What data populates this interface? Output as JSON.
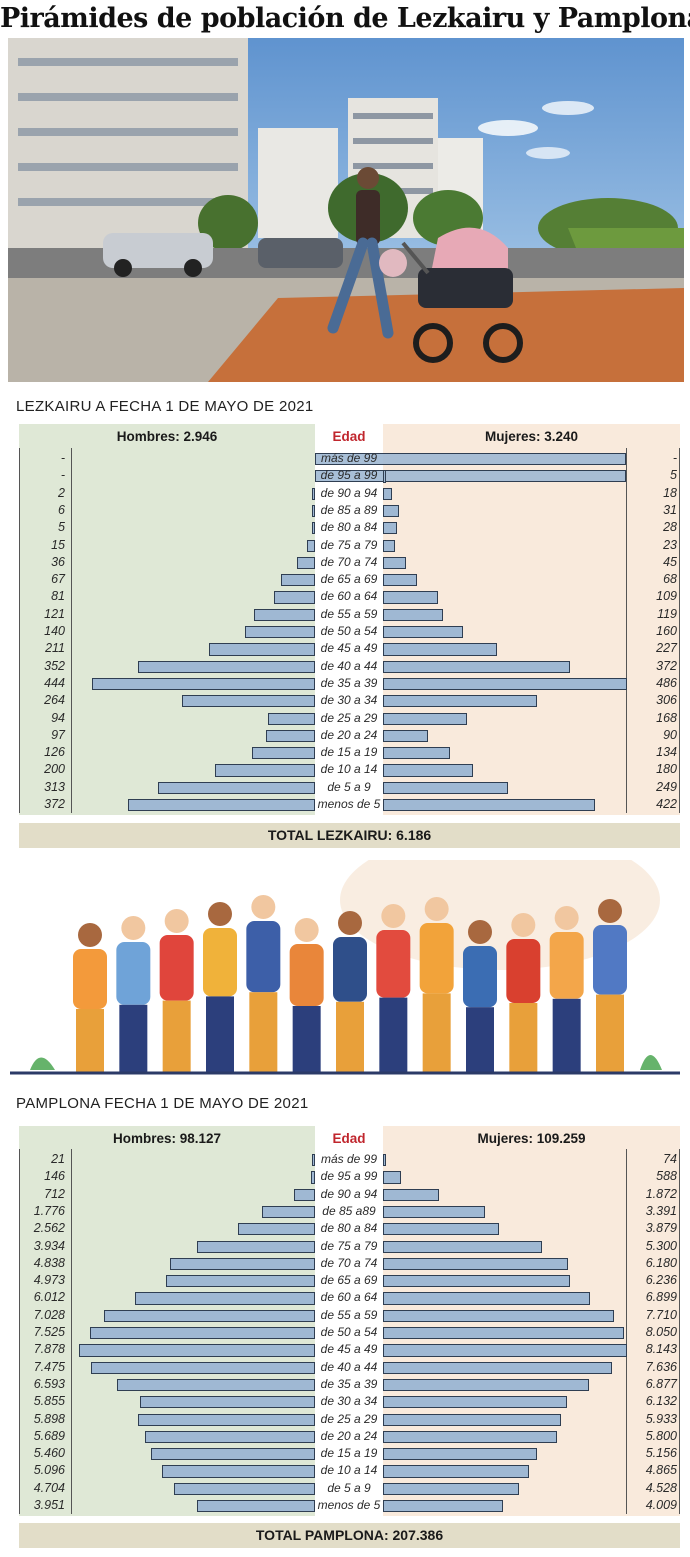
{
  "title": "Pirámides de población de Lezkairu y Pamplona",
  "colors": {
    "men_bg": "#dfe8d6",
    "women_bg": "#f9eadc",
    "bar_fill": "#9fb8d3",
    "bar_stroke": "#2f3e52",
    "age_header": "#c0262d",
    "total_bg": "#e2ddc8"
  },
  "chart_data": [
    {
      "type": "bar",
      "orientation": "horizontal-pyramid",
      "title": "LEZKAIRU A FECHA 1 DE MAYO DE 2021",
      "center_header": "Edad",
      "categories": [
        "más de 99",
        "de 95 a 99",
        "de 90 a 94",
        "de 85 a 89",
        "de 80 a 84",
        "de 75 a 79",
        "de 70 a 74",
        "de 65 a 69",
        "de 60 a 64",
        "de 55 a 59",
        "de 50 a 54",
        "de 45 a 49",
        "de 40 a 44",
        "de 35 a 39",
        "de 30 a 34",
        "de 25 a 29",
        "de 20 a 24",
        "de 15 a 19",
        "de 10 a 14",
        "de 5 a 9",
        "menos de 5"
      ],
      "series": [
        {
          "name": "Hombres: 2.946",
          "values": [
            0,
            0,
            2,
            6,
            5,
            15,
            36,
            67,
            81,
            121,
            140,
            211,
            352,
            444,
            264,
            94,
            97,
            126,
            200,
            313,
            372
          ],
          "labels": [
            "-",
            "-",
            "2",
            "6",
            "5",
            "15",
            "36",
            "67",
            "81",
            "121",
            "140",
            "211",
            "352",
            "444",
            "264",
            "94",
            "97",
            "126",
            "200",
            "313",
            "372"
          ]
        },
        {
          "name": "Mujeres: 3.240",
          "values": [
            0,
            5,
            18,
            31,
            28,
            23,
            45,
            68,
            109,
            119,
            160,
            227,
            372,
            486,
            306,
            168,
            90,
            134,
            180,
            249,
            422
          ],
          "labels": [
            "-",
            "5",
            "18",
            "31",
            "28",
            "23",
            "45",
            "68",
            "109",
            "119",
            "160",
            "227",
            "372",
            "486",
            "306",
            "168",
            "90",
            "134",
            "180",
            "249",
            "422"
          ]
        }
      ],
      "total": "TOTAL LEZKAIRU: 6.186"
    },
    {
      "type": "bar",
      "orientation": "horizontal-pyramid",
      "title": "PAMPLONA FECHA 1 DE MAYO DE 2021",
      "center_header": "Edad",
      "categories": [
        "más de 99",
        "de 95 a 99",
        "de 90 a 94",
        "de 85 a89",
        "de 80 a 84",
        "de 75 a 79",
        "de 70 a 74",
        "de 65 a 69",
        "de 60 a 64",
        "de 55 a 59",
        "de 50 a 54",
        "de 45 a 49",
        "de 40 a 44",
        "de 35 a 39",
        "de 30 a 34",
        "de 25 a 29",
        "de 20 a 24",
        "de 15 a 19",
        "de 10 a 14",
        "de 5 a 9",
        "menos de 5"
      ],
      "series": [
        {
          "name": "Hombres: 98.127",
          "values": [
            21,
            146,
            712,
            1776,
            2562,
            3934,
            4838,
            4973,
            6012,
            7028,
            7525,
            7878,
            7475,
            6593,
            5855,
            5898,
            5689,
            5460,
            5096,
            4704,
            3951
          ],
          "labels": [
            "21",
            "146",
            "712",
            "1.776",
            "2.562",
            "3.934",
            "4.838",
            "4.973",
            "6.012",
            "7.028",
            "7.525",
            "7.878",
            "7.475",
            "6.593",
            "5.855",
            "5.898",
            "5.689",
            "5.460",
            "5.096",
            "4.704",
            "3.951"
          ]
        },
        {
          "name": "Mujeres: 109.259",
          "values": [
            74,
            588,
            1872,
            3391,
            3879,
            5300,
            6180,
            6236,
            6899,
            7710,
            8050,
            8143,
            7636,
            6877,
            6132,
            5933,
            5800,
            5156,
            4865,
            4528,
            4009
          ],
          "labels": [
            "74",
            "588",
            "1.872",
            "3.391",
            "3.879",
            "5.300",
            "6.180",
            "6.236",
            "6.899",
            "7.710",
            "8.050",
            "8.143",
            "7.636",
            "6.877",
            "6.132",
            "5.933",
            "5.800",
            "5.156",
            "4.865",
            "4.528",
            "4.009"
          ]
        }
      ],
      "total": "TOTAL PAMPLONA: 207.386"
    }
  ]
}
